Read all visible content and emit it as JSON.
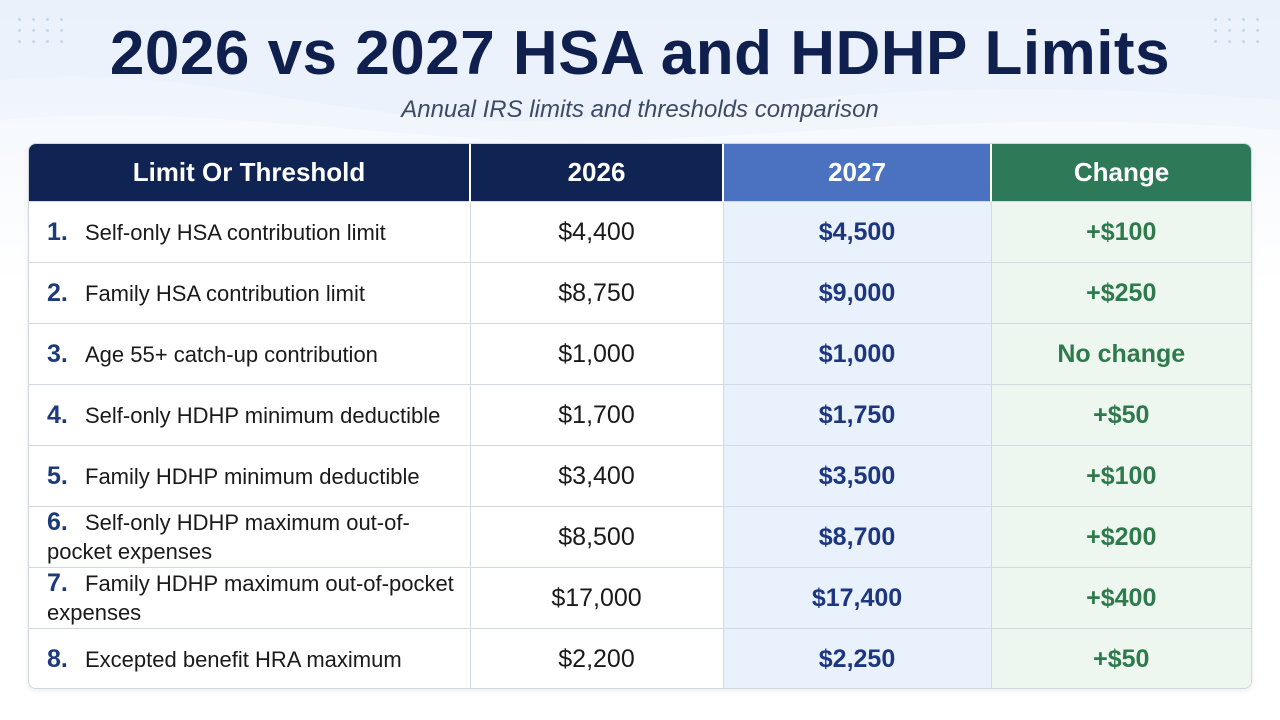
{
  "title": "2026 vs 2027 HSA and HDHP Limits",
  "subtitle": "Annual IRS limits and thresholds comparison",
  "colors": {
    "header_dark": "#0f2452",
    "header_2027": "#4a72c0",
    "header_change": "#2e7a58",
    "value_2027": "#1d3680",
    "value_change": "#2e7a4c"
  },
  "chart_data": {
    "type": "table",
    "columns": [
      "Limit Or Threshold",
      "2026",
      "2027",
      "Change"
    ],
    "rows": [
      {
        "num": "1.",
        "label": "Self-only HSA contribution limit",
        "v2026": "$4,400",
        "v2027": "$4,500",
        "change": "+$100"
      },
      {
        "num": "2.",
        "label": "Family HSA contribution limit",
        "v2026": "$8,750",
        "v2027": "$9,000",
        "change": "+$250"
      },
      {
        "num": "3.",
        "label": "Age 55+ catch-up contribution",
        "v2026": "$1,000",
        "v2027": "$1,000",
        "change": "No change"
      },
      {
        "num": "4.",
        "label": "Self-only HDHP minimum deductible",
        "v2026": "$1,700",
        "v2027": "$1,750",
        "change": "+$50"
      },
      {
        "num": "5.",
        "label": "Family HDHP minimum deductible",
        "v2026": "$3,400",
        "v2027": "$3,500",
        "change": "+$100"
      },
      {
        "num": "6.",
        "label": "Self-only HDHP maximum out-of-pocket expenses",
        "v2026": "$8,500",
        "v2027": "$8,700",
        "change": "+$200"
      },
      {
        "num": "7.",
        "label": "Family HDHP maximum out-of-pocket expenses",
        "v2026": "$17,000",
        "v2027": "$17,400",
        "change": "+$400"
      },
      {
        "num": "8.",
        "label": "Excepted benefit HRA maximum",
        "v2026": "$2,200",
        "v2027": "$2,250",
        "change": "+$50"
      }
    ]
  }
}
